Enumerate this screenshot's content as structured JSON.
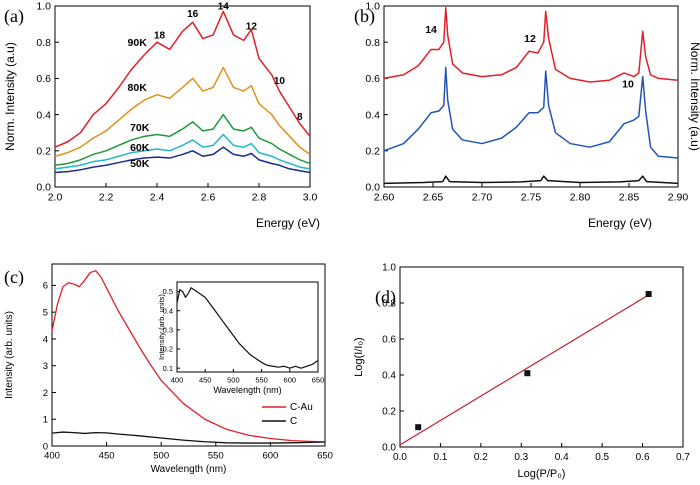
{
  "chart_data": [
    {
      "panel": "(a)",
      "type": "line",
      "xlabel": "Energy (eV)",
      "ylabel": "Norm. Intensity (a.u)",
      "xlim": [
        2.0,
        3.0
      ],
      "ylim": [
        0.0,
        1.0
      ],
      "x_ticks": [
        "2.0",
        "2.2",
        "2.4",
        "2.6",
        "2.8",
        "3.0"
      ],
      "y_ticks": [
        "0.0",
        "0.2",
        "0.4",
        "0.6",
        "0.8",
        "1.0"
      ],
      "peak_labels": [
        {
          "text": "18",
          "x": 2.41,
          "y": 0.82
        },
        {
          "text": "16",
          "x": 2.54,
          "y": 0.94
        },
        {
          "text": "14",
          "x": 2.66,
          "y": 0.98
        },
        {
          "text": "12",
          "x": 2.77,
          "y": 0.87
        },
        {
          "text": "10",
          "x": 2.88,
          "y": 0.57
        },
        {
          "text": "8",
          "x": 2.96,
          "y": 0.37
        }
      ],
      "series": [
        {
          "name": "90K",
          "color": "#e0202a",
          "label_at": [
            2.36,
            0.78
          ],
          "x": [
            2.0,
            2.05,
            2.1,
            2.15,
            2.2,
            2.25,
            2.3,
            2.35,
            2.4,
            2.45,
            2.5,
            2.54,
            2.58,
            2.62,
            2.66,
            2.7,
            2.74,
            2.77,
            2.8,
            2.85,
            2.88,
            2.92,
            2.96,
            3.0
          ],
          "y": [
            0.22,
            0.25,
            0.3,
            0.4,
            0.46,
            0.55,
            0.65,
            0.73,
            0.8,
            0.76,
            0.86,
            0.91,
            0.82,
            0.84,
            0.97,
            0.84,
            0.81,
            0.87,
            0.71,
            0.62,
            0.53,
            0.44,
            0.35,
            0.28
          ]
        },
        {
          "name": "80K",
          "color": "#e0901c",
          "label_at": [
            2.36,
            0.53
          ],
          "x": [
            2.0,
            2.05,
            2.1,
            2.15,
            2.2,
            2.25,
            2.3,
            2.35,
            2.4,
            2.45,
            2.5,
            2.54,
            2.58,
            2.62,
            2.66,
            2.7,
            2.74,
            2.77,
            2.8,
            2.85,
            2.88,
            2.92,
            2.96,
            3.0
          ],
          "y": [
            0.17,
            0.19,
            0.22,
            0.27,
            0.31,
            0.37,
            0.43,
            0.48,
            0.51,
            0.49,
            0.55,
            0.6,
            0.53,
            0.55,
            0.66,
            0.55,
            0.53,
            0.56,
            0.46,
            0.4,
            0.34,
            0.28,
            0.22,
            0.18
          ]
        },
        {
          "name": "70K",
          "color": "#1e9a3c",
          "label_at": [
            2.37,
            0.31
          ],
          "x": [
            2.0,
            2.05,
            2.1,
            2.15,
            2.2,
            2.25,
            2.3,
            2.35,
            2.4,
            2.45,
            2.5,
            2.54,
            2.58,
            2.62,
            2.66,
            2.7,
            2.74,
            2.77,
            2.8,
            2.85,
            2.88,
            2.92,
            2.96,
            3.0
          ],
          "y": [
            0.12,
            0.13,
            0.15,
            0.18,
            0.2,
            0.23,
            0.26,
            0.28,
            0.29,
            0.28,
            0.32,
            0.36,
            0.31,
            0.32,
            0.4,
            0.32,
            0.31,
            0.33,
            0.27,
            0.24,
            0.21,
            0.18,
            0.15,
            0.13
          ]
        },
        {
          "name": "60K",
          "color": "#20b8c8",
          "label_at": [
            2.37,
            0.2
          ],
          "x": [
            2.0,
            2.05,
            2.1,
            2.15,
            2.2,
            2.25,
            2.3,
            2.35,
            2.4,
            2.45,
            2.5,
            2.54,
            2.58,
            2.62,
            2.66,
            2.7,
            2.74,
            2.77,
            2.8,
            2.85,
            2.88,
            2.92,
            2.96,
            3.0
          ],
          "y": [
            0.1,
            0.11,
            0.12,
            0.14,
            0.15,
            0.17,
            0.19,
            0.2,
            0.21,
            0.2,
            0.23,
            0.26,
            0.22,
            0.23,
            0.29,
            0.23,
            0.22,
            0.24,
            0.19,
            0.17,
            0.15,
            0.13,
            0.11,
            0.1
          ]
        },
        {
          "name": "50K",
          "color": "#1a2a8c",
          "label_at": [
            2.37,
            0.11
          ],
          "x": [
            2.0,
            2.05,
            2.1,
            2.15,
            2.2,
            2.25,
            2.3,
            2.35,
            2.4,
            2.45,
            2.5,
            2.54,
            2.58,
            2.62,
            2.66,
            2.7,
            2.74,
            2.77,
            2.8,
            2.85,
            2.88,
            2.92,
            2.96,
            3.0
          ],
          "y": [
            0.08,
            0.085,
            0.095,
            0.11,
            0.12,
            0.135,
            0.15,
            0.16,
            0.165,
            0.16,
            0.18,
            0.2,
            0.17,
            0.18,
            0.22,
            0.18,
            0.17,
            0.185,
            0.15,
            0.13,
            0.12,
            0.1,
            0.09,
            0.08
          ]
        }
      ]
    },
    {
      "panel": "(b)",
      "type": "line",
      "xlabel": "Energy (eV)",
      "ylabel": "Norm. Intensity (a.u)",
      "ylabel_side": "right",
      "xlim": [
        2.6,
        2.9
      ],
      "ylim": [
        0.0,
        1.0
      ],
      "x_ticks": [
        "2.60",
        "2.65",
        "2.70",
        "2.75",
        "2.80",
        "2.85",
        "2.90"
      ],
      "y_ticks": [
        "0.0",
        "0.2",
        "0.4",
        "0.6",
        "0.8",
        "1.0"
      ],
      "peak_labels": [
        {
          "text": "14",
          "x": 2.648,
          "y": 0.85
        },
        {
          "text": "12",
          "x": 2.749,
          "y": 0.8
        },
        {
          "text": "10",
          "x": 2.849,
          "y": 0.55
        }
      ],
      "series": [
        {
          "color": "#e0202a",
          "x": [
            2.6,
            2.62,
            2.635,
            2.648,
            2.656,
            2.661,
            2.663,
            2.665,
            2.67,
            2.68,
            2.7,
            2.72,
            2.735,
            2.748,
            2.757,
            2.763,
            2.765,
            2.768,
            2.775,
            2.79,
            2.81,
            2.83,
            2.845,
            2.855,
            2.86,
            2.864,
            2.867,
            2.872,
            2.88,
            2.9
          ],
          "y": [
            0.6,
            0.62,
            0.67,
            0.76,
            0.76,
            0.8,
            0.99,
            0.84,
            0.68,
            0.63,
            0.61,
            0.62,
            0.66,
            0.75,
            0.74,
            0.8,
            0.97,
            0.82,
            0.65,
            0.6,
            0.58,
            0.59,
            0.63,
            0.61,
            0.63,
            0.86,
            0.72,
            0.62,
            0.6,
            0.59
          ]
        },
        {
          "color": "#2255b0",
          "x": [
            2.6,
            2.62,
            2.635,
            2.648,
            2.656,
            2.661,
            2.663,
            2.665,
            2.67,
            2.68,
            2.7,
            2.72,
            2.735,
            2.748,
            2.757,
            2.763,
            2.765,
            2.768,
            2.775,
            2.79,
            2.81,
            2.83,
            2.845,
            2.855,
            2.86,
            2.864,
            2.867,
            2.872,
            2.88,
            2.9
          ],
          "y": [
            0.2,
            0.24,
            0.32,
            0.41,
            0.42,
            0.45,
            0.66,
            0.48,
            0.32,
            0.26,
            0.24,
            0.27,
            0.33,
            0.41,
            0.41,
            0.44,
            0.64,
            0.45,
            0.3,
            0.24,
            0.22,
            0.25,
            0.35,
            0.37,
            0.39,
            0.61,
            0.42,
            0.22,
            0.17,
            0.16
          ]
        },
        {
          "color": "#111111",
          "x": [
            2.6,
            2.64,
            2.66,
            2.663,
            2.667,
            2.7,
            2.74,
            2.76,
            2.763,
            2.767,
            2.8,
            2.84,
            2.86,
            2.864,
            2.868,
            2.9
          ],
          "y": [
            0.02,
            0.025,
            0.03,
            0.06,
            0.03,
            0.025,
            0.028,
            0.035,
            0.06,
            0.035,
            0.025,
            0.028,
            0.035,
            0.06,
            0.03,
            0.02
          ]
        }
      ]
    },
    {
      "panel": "(c)",
      "type": "line",
      "xlabel": "Wavelength (nm)",
      "ylabel": "Intensity (arb. units)",
      "xlim": [
        400,
        650
      ],
      "ylim": [
        0,
        6.8
      ],
      "x_ticks": [
        "400",
        "450",
        "500",
        "550",
        "600",
        "650"
      ],
      "y_ticks": [
        "0",
        "1",
        "2",
        "3",
        "4",
        "5",
        "6"
      ],
      "legend": "bottom-right",
      "series": [
        {
          "name": "C-Au",
          "color": "#e0202a",
          "x": [
            400,
            405,
            410,
            415,
            420,
            425,
            430,
            435,
            440,
            445,
            450,
            460,
            470,
            480,
            490,
            500,
            520,
            540,
            560,
            580,
            600,
            620,
            650
          ],
          "y": [
            4.3,
            5.3,
            5.95,
            6.1,
            6.05,
            5.95,
            6.2,
            6.48,
            6.55,
            6.3,
            5.9,
            5.1,
            4.4,
            3.7,
            3.05,
            2.45,
            1.6,
            1.0,
            0.62,
            0.4,
            0.28,
            0.2,
            0.15
          ]
        },
        {
          "name": "C",
          "color": "#111111",
          "x": [
            400,
            410,
            420,
            430,
            440,
            450,
            460,
            480,
            500,
            520,
            540,
            560,
            580,
            600,
            620,
            650
          ],
          "y": [
            0.48,
            0.52,
            0.5,
            0.47,
            0.5,
            0.49,
            0.45,
            0.38,
            0.3,
            0.22,
            0.16,
            0.12,
            0.11,
            0.11,
            0.12,
            0.15
          ]
        }
      ],
      "inset": {
        "type": "line",
        "xlabel": "Wavelength (nm)",
        "ylabel": "Intensity (arb. units)",
        "xlim": [
          400,
          650
        ],
        "ylim": [
          0.08,
          0.55
        ],
        "x_ticks": [
          "400",
          "450",
          "500",
          "550",
          "600",
          "650"
        ],
        "y_ticks": [
          "0.1",
          "0.2",
          "0.3",
          "0.4",
          "0.5"
        ],
        "series": [
          {
            "color": "#111111",
            "x": [
              400,
              405,
              410,
              415,
              420,
              425,
              430,
              435,
              440,
              450,
              460,
              470,
              480,
              490,
              500,
              510,
              520,
              530,
              540,
              550,
              560,
              570,
              580,
              590,
              600,
              610,
              620,
              630,
              640,
              650
            ],
            "y": [
              0.44,
              0.51,
              0.5,
              0.47,
              0.49,
              0.52,
              0.51,
              0.5,
              0.49,
              0.47,
              0.43,
              0.39,
              0.35,
              0.31,
              0.27,
              0.23,
              0.2,
              0.17,
              0.15,
              0.13,
              0.115,
              0.11,
              0.105,
              0.11,
              0.1,
              0.11,
              0.1,
              0.11,
              0.12,
              0.14
            ]
          }
        ]
      }
    },
    {
      "panel": "(d)",
      "type": "scatter",
      "xlabel": "Log(P/P₀)",
      "ylabel": "Log(I/I₀)",
      "xlim": [
        0.0,
        0.7
      ],
      "ylim": [
        0.0,
        1.0
      ],
      "x_ticks": [
        "0.0",
        "0.1",
        "0.2",
        "0.3",
        "0.4",
        "0.5",
        "0.6",
        "0.7"
      ],
      "y_ticks": [
        "0.0",
        "0.2",
        "0.4",
        "0.6",
        "0.8",
        "1.0"
      ],
      "points": {
        "x": [
          0.045,
          0.315,
          0.615
        ],
        "y": [
          0.11,
          0.41,
          0.85
        ],
        "color": "#111111"
      },
      "fit": {
        "x": [
          0.0,
          0.615
        ],
        "y": [
          0.012,
          0.845
        ],
        "color": "#c0202a"
      }
    }
  ]
}
